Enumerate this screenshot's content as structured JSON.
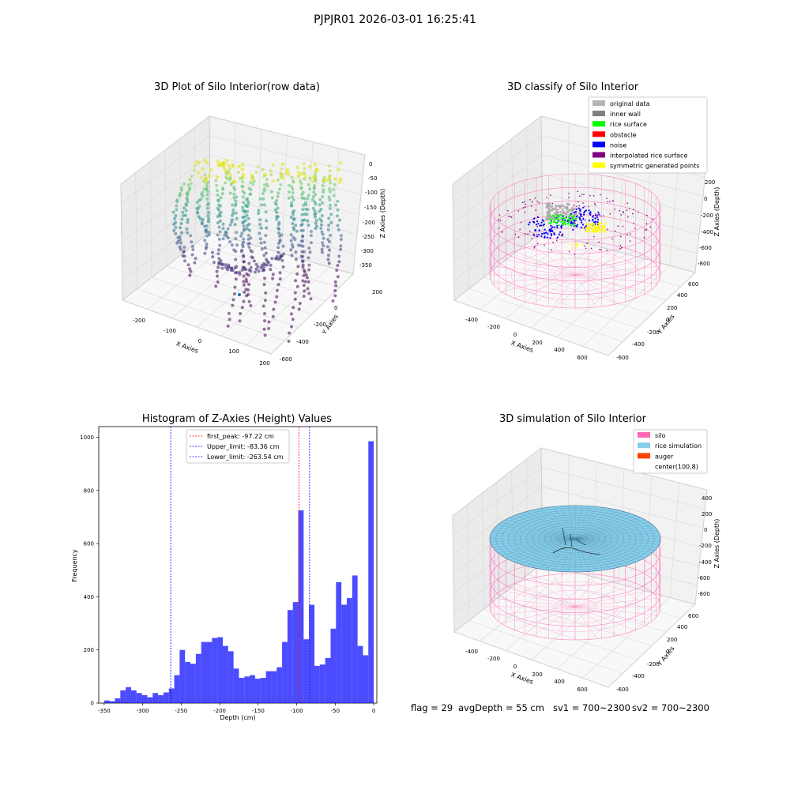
{
  "suptitle": "PJPJR01 2026-03-01 16:25:41",
  "panels": {
    "raw": {
      "title": "3D Plot of Silo Interior(row data)",
      "xlabel": "X Axies",
      "ylabel": "Y Axies",
      "zlabel": "Z Axies (Depth)",
      "xticks": [
        "-200",
        "-100",
        "0",
        "100",
        "200"
      ],
      "yticks": [
        "200",
        "0",
        "-200",
        "-400",
        "-600"
      ],
      "zticks": [
        "0",
        "-50",
        "-100",
        "-150",
        "-200",
        "-250",
        "-300",
        "-350"
      ]
    },
    "classify": {
      "title": "3D classify of Silo Interior",
      "xlabel": "X Axies",
      "ylabel": "Y Axies",
      "zlabel": "Z Axies (Depth)",
      "xticks": [
        "-400",
        "-200",
        "0",
        "200",
        "400",
        "600"
      ],
      "yticks": [
        "600",
        "400",
        "200",
        "0",
        "-200",
        "-400",
        "-600"
      ],
      "zticks": [
        "200",
        "0",
        "-200",
        "-400",
        "-600",
        "-800"
      ],
      "legend": [
        {
          "label": "original data",
          "color": "#b4b4b4"
        },
        {
          "label": "inner wall",
          "color": "#808080"
        },
        {
          "label": "rice surface",
          "color": "#00ff00"
        },
        {
          "label": "obstacle",
          "color": "#ff0000"
        },
        {
          "label": "noise",
          "color": "#0000ff"
        },
        {
          "label": "interpolated rice surface",
          "color": "#800080"
        },
        {
          "label": "symmetric generated points",
          "color": "#ffff00"
        }
      ]
    },
    "histogram": {
      "title": "Histogram of Z-Axies (Height) Values",
      "legend": [
        {
          "label": "first_peak: -97.22 cm",
          "color": "#ff0000"
        },
        {
          "label": "Upper_limit: -83.36 cm",
          "color": "#0000ff"
        },
        {
          "label": "Lower_limit: -263.54 cm",
          "color": "#0000ff"
        }
      ]
    },
    "simulation": {
      "title": "3D simulation of Silo Interior",
      "xlabel": "X Axies",
      "ylabel": "Y Axies",
      "zlabel": "Z Axies (Depth)",
      "xticks": [
        "-400",
        "-200",
        "0",
        "200",
        "400",
        "600"
      ],
      "yticks": [
        "600",
        "400",
        "200",
        "0",
        "-200",
        "-400",
        "-600"
      ],
      "zticks": [
        "400",
        "200",
        "0",
        "-200",
        "-400",
        "-600",
        "-800"
      ],
      "legend": [
        {
          "label": "silo",
          "color": "#ff69b4"
        },
        {
          "label": "rice simulation",
          "color": "#87ceeb"
        },
        {
          "label": "auger",
          "color": "#ff4500"
        },
        {
          "label": "center(100,8)",
          "color": ""
        }
      ]
    }
  },
  "status": {
    "flag": "flag = 29",
    "avg_depth": "avgDepth = 55 cm",
    "sv1": "sv1 = 700~2300",
    "sv2": "sv2 = 700~2300"
  },
  "chart_data": [
    {
      "type": "bar",
      "title": "Histogram of Z-Axies (Height) Values",
      "xlabel": "Depth (cm)",
      "ylabel": "Frequency",
      "xlim": [
        -357,
        4
      ],
      "ylim": [
        0,
        1040
      ],
      "xticks": [
        -350,
        -300,
        -250,
        -200,
        -150,
        -100,
        -50,
        0
      ],
      "yticks": [
        0,
        200,
        400,
        600,
        800,
        1000
      ],
      "bin_start": -350,
      "bin_width": 7,
      "values": [
        10,
        7,
        18,
        48,
        60,
        48,
        38,
        30,
        22,
        38,
        30,
        40,
        55,
        105,
        200,
        155,
        148,
        185,
        230,
        230,
        245,
        248,
        215,
        195,
        130,
        95,
        100,
        105,
        92,
        95,
        120,
        120,
        135,
        230,
        350,
        380,
        725,
        240,
        370,
        140,
        145,
        170,
        280,
        455,
        370,
        395,
        480,
        215,
        180,
        985
      ],
      "vlines": [
        {
          "name": "first_peak",
          "x": -97.22,
          "color": "#ff0000"
        },
        {
          "name": "Upper_limit",
          "x": -83.36,
          "color": "#0000ff"
        },
        {
          "name": "Lower_limit",
          "x": -263.54,
          "color": "#0000ff"
        }
      ],
      "bar_color": "#0000ff",
      "legend_position": "top"
    }
  ]
}
